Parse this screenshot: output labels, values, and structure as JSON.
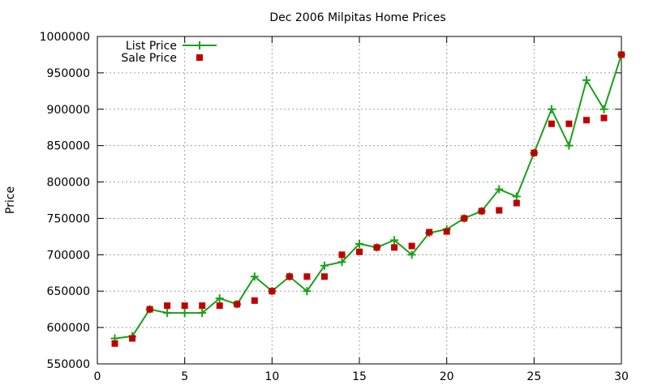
{
  "chart_data": {
    "type": "line",
    "title": "Dec 2006 Milpitas Home Prices",
    "xlabel": "",
    "ylabel": "Price",
    "xlim": [
      0,
      30
    ],
    "ylim": [
      550000,
      1000000
    ],
    "xticks": [
      "0",
      "5",
      "10",
      "15",
      "20",
      "25",
      "30"
    ],
    "yticks": [
      "550000",
      "600000",
      "650000",
      "700000",
      "750000",
      "800000",
      "850000",
      "900000",
      "950000",
      "1000000"
    ],
    "grid": true,
    "legend_position": "top-left",
    "x": [
      1,
      2,
      3,
      4,
      5,
      6,
      7,
      8,
      9,
      10,
      11,
      12,
      13,
      14,
      15,
      16,
      17,
      18,
      19,
      20,
      21,
      22,
      23,
      24,
      25,
      26,
      27,
      28,
      29,
      30
    ],
    "series": [
      {
        "name": "List Price",
        "style": "line-with-plus-markers",
        "color": "#1aa01a",
        "values": [
          585000,
          588000,
          625000,
          620000,
          620000,
          620000,
          640000,
          632000,
          670000,
          650000,
          670000,
          650000,
          685000,
          690000,
          715000,
          710000,
          720000,
          700000,
          730000,
          735000,
          750000,
          760000,
          790000,
          780000,
          840000,
          900000,
          850000,
          940000,
          900000,
          975000
        ]
      },
      {
        "name": "Sale Price",
        "style": "square-markers",
        "color": "#c00000",
        "values": [
          578000,
          585000,
          625000,
          630000,
          630000,
          630000,
          630000,
          632000,
          637000,
          650000,
          670000,
          670000,
          670000,
          700000,
          704000,
          710000,
          710000,
          712000,
          731000,
          732000,
          750000,
          760000,
          761000,
          771000,
          840000,
          880000,
          880000,
          885000,
          888000,
          975000
        ]
      }
    ]
  }
}
